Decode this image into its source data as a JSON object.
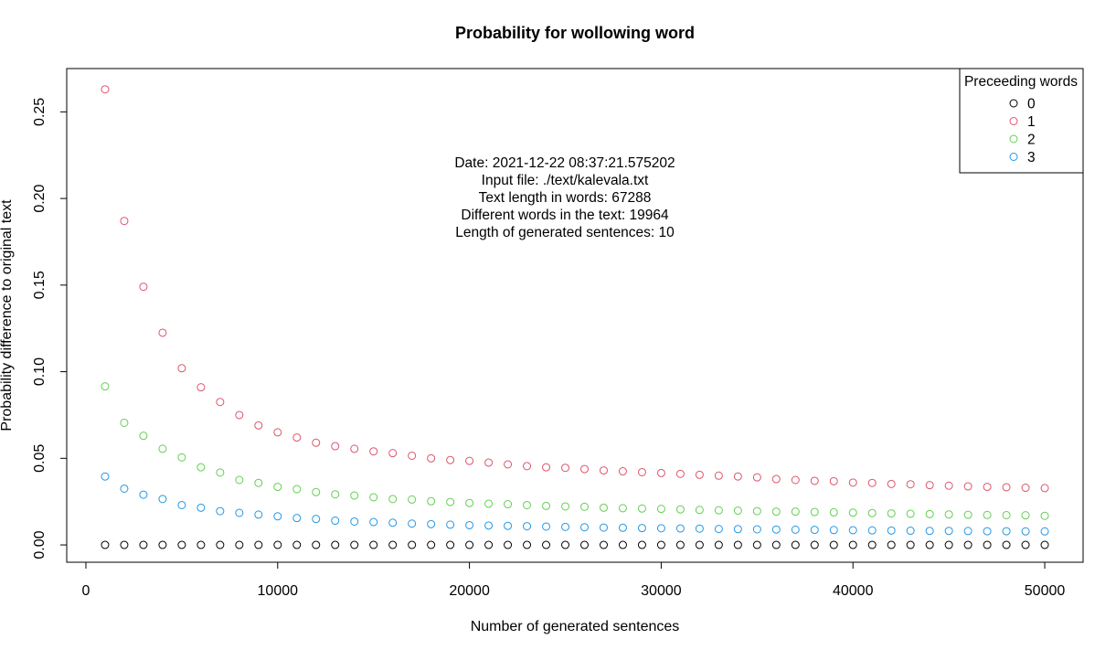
{
  "chart_data": {
    "type": "scatter",
    "title": "Probability for wollowing word",
    "xlabel": "Number of generated sentences",
    "ylabel": "Probability difference to original text",
    "xlim": [
      -1000,
      52000
    ],
    "ylim": [
      -0.01,
      0.275
    ],
    "xticks": [
      0,
      10000,
      20000,
      30000,
      40000,
      50000
    ],
    "xtick_labels": [
      "0",
      "10000",
      "20000",
      "30000",
      "40000",
      "50000"
    ],
    "yticks": [
      0,
      0.05,
      0.1,
      0.15,
      0.2,
      0.25
    ],
    "ytick_labels": [
      "0.00",
      "0.05",
      "0.10",
      "0.15",
      "0.20",
      "0.25"
    ],
    "grid": false,
    "marker": "open-circle",
    "x": [
      1000,
      2000,
      3000,
      4000,
      5000,
      6000,
      7000,
      8000,
      9000,
      10000,
      11000,
      12000,
      13000,
      14000,
      15000,
      16000,
      17000,
      18000,
      19000,
      20000,
      21000,
      22000,
      23000,
      24000,
      25000,
      26000,
      27000,
      28000,
      29000,
      30000,
      31000,
      32000,
      33000,
      34000,
      35000,
      36000,
      37000,
      38000,
      39000,
      40000,
      41000,
      42000,
      43000,
      44000,
      45000,
      46000,
      47000,
      48000,
      49000,
      50000
    ],
    "series": [
      {
        "name": "0",
        "color": "#000000",
        "values": [
          0,
          0,
          0,
          0,
          0,
          0,
          0,
          0,
          0,
          0,
          0,
          0,
          0,
          0,
          0,
          0,
          0,
          0,
          0,
          0,
          0,
          0,
          0,
          0,
          0,
          0,
          0,
          0,
          0,
          0,
          0,
          0,
          0,
          0,
          0,
          0,
          0,
          0,
          0,
          0,
          0,
          0,
          0,
          0,
          0,
          0,
          0,
          0,
          0,
          0
        ]
      },
      {
        "name": "1",
        "color": "#DF536B",
        "values": [
          0.263,
          0.187,
          0.149,
          0.1225,
          0.102,
          0.091,
          0.0825,
          0.075,
          0.069,
          0.065,
          0.062,
          0.059,
          0.057,
          0.0555,
          0.054,
          0.053,
          0.0515,
          0.05,
          0.049,
          0.0485,
          0.0475,
          0.0465,
          0.0455,
          0.0448,
          0.0445,
          0.0438,
          0.043,
          0.0425,
          0.042,
          0.0415,
          0.041,
          0.0405,
          0.04,
          0.0395,
          0.039,
          0.038,
          0.0375,
          0.037,
          0.0368,
          0.036,
          0.0358,
          0.0352,
          0.035,
          0.0345,
          0.0342,
          0.0338,
          0.0335,
          0.0333,
          0.033,
          0.0328
        ]
      },
      {
        "name": "2",
        "color": "#61D04F",
        "values": [
          0.0915,
          0.0705,
          0.063,
          0.0555,
          0.0505,
          0.0448,
          0.0418,
          0.0375,
          0.0358,
          0.0335,
          0.0322,
          0.0305,
          0.0292,
          0.0285,
          0.0275,
          0.0265,
          0.0262,
          0.0252,
          0.0248,
          0.0242,
          0.0238,
          0.0235,
          0.023,
          0.0225,
          0.0222,
          0.022,
          0.0215,
          0.0212,
          0.021,
          0.0208,
          0.0205,
          0.0202,
          0.02,
          0.0198,
          0.0195,
          0.0192,
          0.0192,
          0.019,
          0.0188,
          0.0186,
          0.0184,
          0.0182,
          0.018,
          0.0178,
          0.0176,
          0.0174,
          0.0173,
          0.0172,
          0.0171,
          0.0168
        ]
      },
      {
        "name": "3",
        "color": "#2297E6",
        "values": [
          0.0395,
          0.0325,
          0.029,
          0.0265,
          0.023,
          0.0215,
          0.0195,
          0.0185,
          0.0175,
          0.0165,
          0.0155,
          0.015,
          0.014,
          0.0135,
          0.0132,
          0.0128,
          0.0123,
          0.012,
          0.0117,
          0.0114,
          0.0112,
          0.011,
          0.0108,
          0.0106,
          0.0104,
          0.0102,
          0.01,
          0.0099,
          0.0097,
          0.0096,
          0.0095,
          0.0094,
          0.0092,
          0.0091,
          0.009,
          0.0089,
          0.0088,
          0.0087,
          0.0086,
          0.0085,
          0.0084,
          0.0083,
          0.0082,
          0.0081,
          0.0081,
          0.008,
          0.0079,
          0.0079,
          0.0078,
          0.0078
        ]
      }
    ],
    "legend": {
      "title": "Preceeding words",
      "position": "top-right",
      "entries": [
        "0",
        "1",
        "2",
        "3"
      ]
    },
    "annotations": [
      "Date: 2021-12-22 08:37:21.575202",
      "Input file: ./text/kalevala.txt",
      "Text length in words: 67288",
      "Different words in the text: 19964",
      "Length of generated sentences: 10"
    ]
  }
}
